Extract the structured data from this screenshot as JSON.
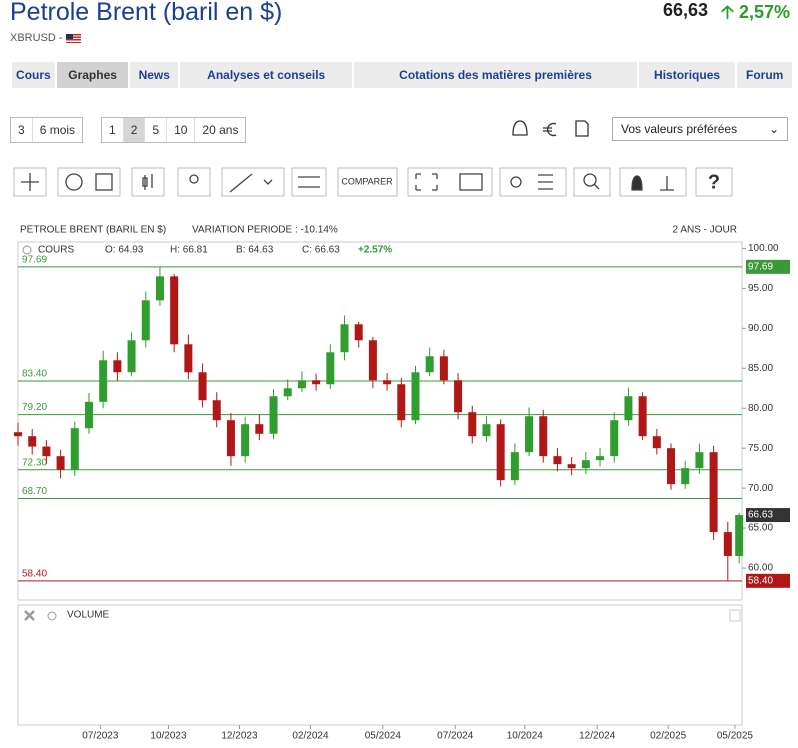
{
  "header": {
    "title": "Petrole Brent (baril en $)",
    "symbol": "XBRUSD -",
    "price": "66,63",
    "change": "2,57%"
  },
  "nav": [
    "Cours",
    "Graphes",
    "News",
    "Analyses et conseils",
    "Cotations des matières premières",
    "Historiques",
    "Forum"
  ],
  "periods": [
    "3",
    "6 mois",
    "1",
    "2",
    "5",
    "10",
    "20 ans"
  ],
  "select": "Vos valeurs préférées",
  "toolbar": {
    "compare": "COMPARER"
  },
  "chart_data": {
    "type": "candlestick",
    "title": "PETROLE BRENT (BARIL EN $)",
    "subtitle": "VARIATION PERIODE : -10.14%",
    "period": "2 ANS - JOUR",
    "series_label": "COURS",
    "ohlc_labels": [
      "O: 64.93",
      "H: 66.81",
      "B: 64.63",
      "C: 66.63"
    ],
    "change_label": "+2.57%",
    "up_color": "#2e9e2e",
    "down_color": "#b01818",
    "x": [
      0,
      10,
      20,
      30,
      40,
      50,
      60,
      70,
      80,
      90,
      100,
      110,
      120,
      130,
      140,
      150,
      160,
      170,
      180,
      190,
      200,
      210,
      220,
      230,
      240,
      250,
      260,
      270,
      280,
      290,
      300,
      310,
      320,
      330,
      340,
      350,
      360,
      370,
      380,
      390,
      400,
      410,
      420,
      430,
      440,
      450,
      460,
      470,
      480,
      490,
      500,
      508
    ],
    "open": [
      77.0,
      76.5,
      75.2,
      74.0,
      72.3,
      77.5,
      80.8,
      86.0,
      84.5,
      88.5,
      93.5,
      96.5,
      88.0,
      84.5,
      81.0,
      78.5,
      74.0,
      78.0,
      76.8,
      81.5,
      82.5,
      83.5,
      83.0,
      87.0,
      90.5,
      88.5,
      83.5,
      83.0,
      78.5,
      84.5,
      86.5,
      83.5,
      79.5,
      76.5,
      78.0,
      71.0,
      74.5,
      79.0,
      74.0,
      73.0,
      72.5,
      73.5,
      74.0,
      78.5,
      81.5,
      76.5,
      75.0,
      70.5,
      72.5,
      74.5,
      64.5,
      61.5
    ],
    "high": [
      78.2,
      77.4,
      76.0,
      74.8,
      78.3,
      81.9,
      87.2,
      87.0,
      89.5,
      94.6,
      97.69,
      96.8,
      89.2,
      85.6,
      82.0,
      79.4,
      78.9,
      79.2,
      82.4,
      83.6,
      84.6,
      84.3,
      88.0,
      91.6,
      90.8,
      88.9,
      84.4,
      83.8,
      85.3,
      87.6,
      87.3,
      84.4,
      80.3,
      79.0,
      78.6,
      75.6,
      80.1,
      79.8,
      75.0,
      73.9,
      74.5,
      75.0,
      79.5,
      82.6,
      82.0,
      77.4,
      75.6,
      73.4,
      75.6,
      75.3,
      65.8,
      66.9
    ],
    "low": [
      75.3,
      74.2,
      73.0,
      71.2,
      71.5,
      76.8,
      80.0,
      83.4,
      84.0,
      87.6,
      92.8,
      87.0,
      83.6,
      80.1,
      77.6,
      72.8,
      73.2,
      76.0,
      76.1,
      81.0,
      82.0,
      82.2,
      82.4,
      86.0,
      87.6,
      82.5,
      82.2,
      77.6,
      78.0,
      84.0,
      83.0,
      78.6,
      75.6,
      75.8,
      70.2,
      70.4,
      74.0,
      73.2,
      72.1,
      71.6,
      71.8,
      72.7,
      73.2,
      77.8,
      76.0,
      74.2,
      69.8,
      69.9,
      71.8,
      63.5,
      58.4,
      60.6
    ],
    "close": [
      76.5,
      75.2,
      74.0,
      72.3,
      77.5,
      80.8,
      86.0,
      84.5,
      88.5,
      93.5,
      96.5,
      88.0,
      84.5,
      81.0,
      78.5,
      74.0,
      78.0,
      76.8,
      81.5,
      82.5,
      83.5,
      83.0,
      87.0,
      90.5,
      88.5,
      83.5,
      83.0,
      78.5,
      84.5,
      86.5,
      83.5,
      79.5,
      76.5,
      78.0,
      71.0,
      74.5,
      79.0,
      74.0,
      73.0,
      72.5,
      73.5,
      74.0,
      78.5,
      81.5,
      76.5,
      75.0,
      70.5,
      72.5,
      74.5,
      64.5,
      61.5,
      66.63
    ],
    "xlim": [
      0,
      510
    ],
    "xticks": [
      {
        "value": 58,
        "label": "07/2023"
      },
      {
        "value": 106,
        "label": "10/2023"
      },
      {
        "value": 156,
        "label": "12/2023"
      },
      {
        "value": 206,
        "label": "02/2024"
      },
      {
        "value": 257,
        "label": "05/2024"
      },
      {
        "value": 308,
        "label": "07/2024"
      },
      {
        "value": 357,
        "label": "10/2024"
      },
      {
        "value": 408,
        "label": "12/2024"
      },
      {
        "value": 458,
        "label": "02/2025"
      },
      {
        "value": 505,
        "label": "05/2025"
      }
    ],
    "ylim": [
      56,
      100.8
    ],
    "yticks": [
      {
        "value": 60,
        "label": "60.00"
      },
      {
        "value": 65,
        "label": "65.00"
      },
      {
        "value": 70,
        "label": "70.00"
      },
      {
        "value": 75,
        "label": "75.00"
      },
      {
        "value": 80,
        "label": "80.00"
      },
      {
        "value": 85,
        "label": "85.00"
      },
      {
        "value": 90,
        "label": "90.00"
      },
      {
        "value": 95,
        "label": "95.00"
      },
      {
        "value": 100,
        "label": "100.00"
      }
    ],
    "levels": [
      {
        "value": 97.69,
        "label": "97.69",
        "color": "#3a9a3a",
        "badge": true
      },
      {
        "value": 83.4,
        "label": "83.40",
        "color": "#3a9a3a"
      },
      {
        "value": 79.2,
        "label": "79.20",
        "color": "#3a9a3a"
      },
      {
        "value": 72.3,
        "label": "72.30",
        "color": "#3a9a3a"
      },
      {
        "value": 68.7,
        "label": "68.70",
        "color": "#3a9a3a"
      },
      {
        "value": 58.4,
        "label": "58.40",
        "color": "#b01818",
        "badge": true
      }
    ],
    "last": 66.63,
    "volume_label": "VOLUME"
  }
}
